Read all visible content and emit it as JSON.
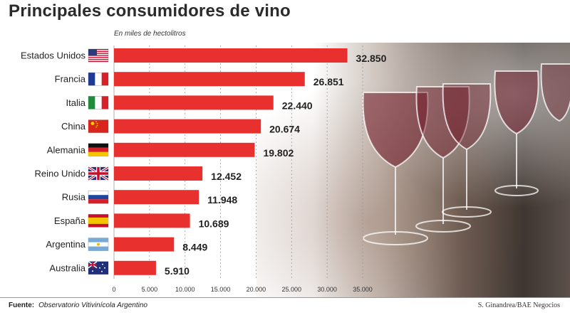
{
  "chart_data": {
    "type": "bar",
    "orientation": "horizontal",
    "title": "Principales consumidores de vino",
    "subtitle": "En miles de hectolitros",
    "categories": [
      "Estados Unidos",
      "Francia",
      "Italia",
      "China",
      "Alemania",
      "Reino Unido",
      "Rusia",
      "España",
      "Argentina",
      "Australia"
    ],
    "values": [
      32850,
      26851,
      22440,
      20674,
      19802,
      12452,
      11948,
      10689,
      8449,
      5910
    ],
    "value_labels": [
      "32.850",
      "26.851",
      "22.440",
      "20.674",
      "19.802",
      "12.452",
      "11.948",
      "10.689",
      "8.449",
      "5.910"
    ],
    "xlim": [
      0,
      35000
    ],
    "xticks": [
      0,
      5000,
      10000,
      15000,
      20000,
      25000,
      30000,
      35000
    ],
    "xtick_labels": [
      "0",
      "5.000",
      "10.000",
      "15.000",
      "20.000",
      "25.000",
      "30.000",
      "35.000"
    ],
    "grid": "vertical-dashed",
    "legend": "none",
    "flags": [
      "flag-usa",
      "flag-france",
      "flag-italy",
      "flag-china",
      "flag-germany",
      "flag-uk",
      "flag-russia",
      "flag-spain",
      "flag-argentina",
      "flag-australia"
    ],
    "bar_color": "#e8302f"
  },
  "footer": {
    "source_label": "Fuente:",
    "source_text": "Observatorio Vitivinícola Argentino",
    "credit": "S. Ginandrea/BAE Negocios"
  },
  "background_image": "wine-glasses-photo"
}
